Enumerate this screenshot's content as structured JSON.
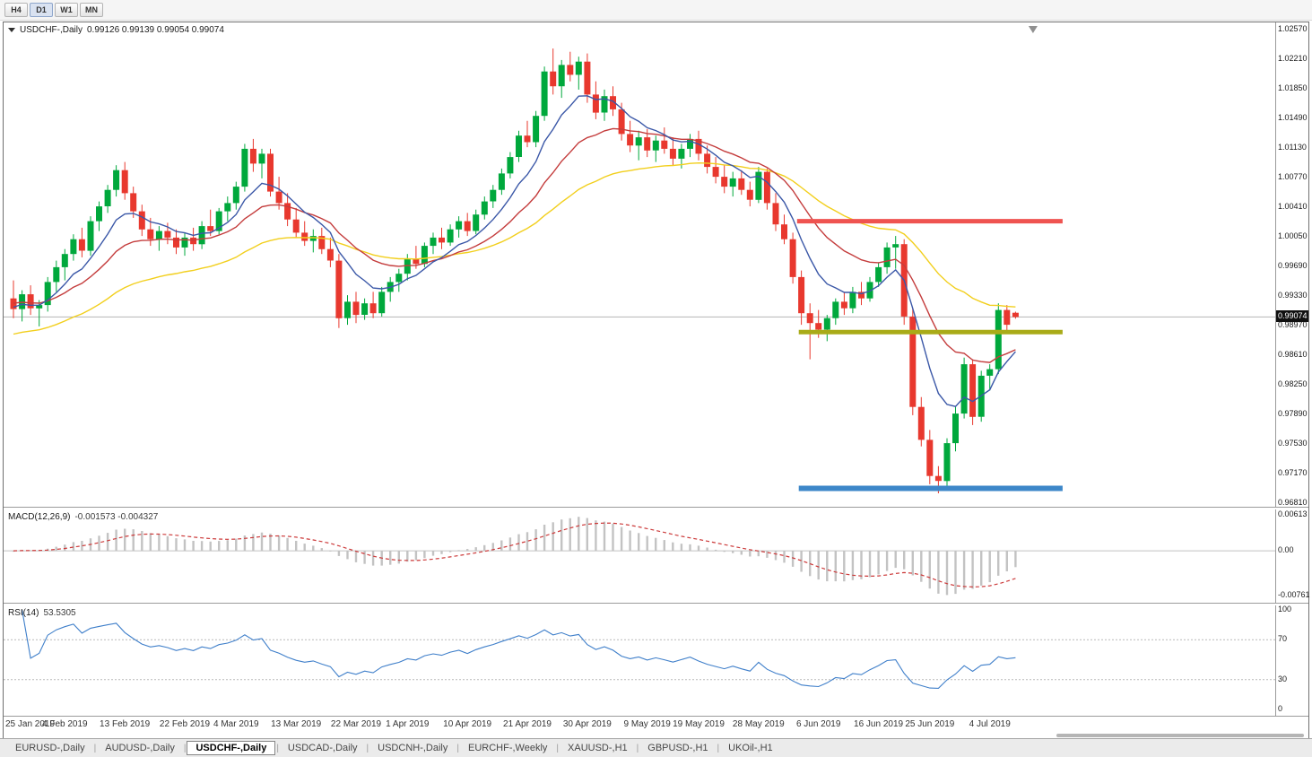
{
  "toolbar": {
    "periods": [
      "H4",
      "D1",
      "W1",
      "MN"
    ],
    "active": "D1"
  },
  "chart": {
    "title": "USDCHF-,Daily",
    "ohlc_text": "0.99126 0.99139 0.99054 0.99074"
  },
  "tabs": {
    "active_index": 2,
    "items": [
      "EURUSD-,Daily",
      "AUDUSD-,Daily",
      "USDCHF-,Daily",
      "USDCAD-,Daily",
      "USDCNH-,Daily",
      "EURCHF-,Weekly",
      "XAUUSD-,H1",
      "GBPUSD-,H1",
      "UKOil-,H1"
    ]
  },
  "chart_data": {
    "type": "candlestick",
    "symbol": "USDCHF-",
    "timeframe": "Daily",
    "current_bar": {
      "open": 0.99126,
      "high": 0.99139,
      "low": 0.99054,
      "close": 0.99074
    },
    "colors": {
      "bull": "#00a83c",
      "bear": "#e8382e",
      "price_line": "#b4b4b4"
    },
    "price_axis": {
      "max": 1.02657,
      "min": 0.96766,
      "badge": {
        "v": 0.99074,
        "t": "0.99074"
      },
      "ticks": [
        {
          "v": 1.0257,
          "t": "1.02570"
        },
        {
          "v": 1.0221,
          "t": "1.02210"
        },
        {
          "v": 1.0185,
          "t": "1.01850"
        },
        {
          "v": 1.0149,
          "t": "1.01490"
        },
        {
          "v": 1.0113,
          "t": "1.01130"
        },
        {
          "v": 1.0077,
          "t": "1.00770"
        },
        {
          "v": 1.0041,
          "t": "1.00410"
        },
        {
          "v": 1.0005,
          "t": "1.00050"
        },
        {
          "v": 0.9969,
          "t": "0.99690"
        },
        {
          "v": 0.9933,
          "t": "0.99330"
        },
        {
          "v": 0.9897,
          "t": "0.98970"
        },
        {
          "v": 0.9861,
          "t": "0.98610"
        },
        {
          "v": 0.9825,
          "t": "0.98250"
        },
        {
          "v": 0.9789,
          "t": "0.97890"
        },
        {
          "v": 0.9753,
          "t": "0.97530"
        },
        {
          "v": 0.9717,
          "t": "0.97170"
        },
        {
          "v": 0.9681,
          "t": "0.96810"
        }
      ]
    },
    "x_labels": [
      {
        "i": 0,
        "t": "25 Jan 2019"
      },
      {
        "i": 6,
        "t": "4 Feb 2019"
      },
      {
        "i": 13,
        "t": "13 Feb 2019"
      },
      {
        "i": 20,
        "t": "22 Feb 2019"
      },
      {
        "i": 26,
        "t": "4 Mar 2019"
      },
      {
        "i": 33,
        "t": "13 Mar 2019"
      },
      {
        "i": 40,
        "t": "22 Mar 2019"
      },
      {
        "i": 46,
        "t": "1 Apr 2019"
      },
      {
        "i": 53,
        "t": "10 Apr 2019"
      },
      {
        "i": 60,
        "t": "21 Apr 2019"
      },
      {
        "i": 67,
        "t": "30 Apr 2019"
      },
      {
        "i": 74,
        "t": "9 May 2019"
      },
      {
        "i": 80,
        "t": "19 May 2019"
      },
      {
        "i": 87,
        "t": "28 May 2019"
      },
      {
        "i": 94,
        "t": "6 Jun 2019"
      },
      {
        "i": 101,
        "t": "16 Jun 2019"
      },
      {
        "i": 107,
        "t": "25 Jun 2019"
      },
      {
        "i": 114,
        "t": "4 Jul 2019"
      }
    ],
    "moving_averages": [
      {
        "period": 40,
        "method": "ema",
        "seed": 0.9885,
        "color": "#f2cf1d",
        "name": "ma-slow-yellow"
      },
      {
        "period": 18,
        "method": "ema",
        "seed": 0.9925,
        "color": "#c43c3c",
        "name": "ma-mid-red"
      },
      {
        "period": 8,
        "method": "ema",
        "seed": 0.992,
        "color": "#3a57a7",
        "name": "ma-fast-blue"
      }
    ],
    "hlines": [
      {
        "price": 1.0024,
        "from": 91.5,
        "to": 122.5,
        "color": "#ef5350",
        "width": 5,
        "name": "resistance-line"
      },
      {
        "price": 0.9889,
        "from": 91.7,
        "to": 122.5,
        "color": "#a9ab18",
        "width": 5,
        "name": "mid-support-line"
      },
      {
        "price": 0.9699,
        "from": 91.7,
        "to": 122.5,
        "color": "#3d87c9",
        "width": 6,
        "name": "support-line"
      }
    ],
    "indicators": {
      "macd": {
        "name": "MACD(12,26,9)",
        "values_text": "-0.001573 -0.004327",
        "fast": 12,
        "slow": 26,
        "signal": 9,
        "vmax": 0.007,
        "vmin": -0.0088,
        "bar_color": "#c3c3c3",
        "signal_color": "#cc3a3a",
        "zero_color": "#c0c0c0",
        "ticks": [
          {
            "v": 0.00613,
            "t": "0.00613"
          },
          {
            "v": 0,
            "t": "0.00"
          },
          {
            "v": -0.00761,
            "t": "-0.00761"
          }
        ]
      },
      "rsi": {
        "name": "RSI(14)",
        "value_text": "53.5305",
        "period": 14,
        "color": "#3f7fca",
        "levels": [
          70,
          30
        ],
        "level_color": "#b9b9b9",
        "ticks": [
          {
            "v": 100,
            "t": "100"
          },
          {
            "v": 70,
            "t": "70"
          },
          {
            "v": 30,
            "t": "30"
          },
          {
            "v": 0,
            "t": "0"
          }
        ]
      }
    },
    "candles": [
      [
        0.993,
        0.9952,
        0.9906,
        0.9917
      ],
      [
        0.9917,
        0.994,
        0.9902,
        0.9935
      ],
      [
        0.9935,
        0.9946,
        0.991,
        0.9918
      ],
      [
        0.9918,
        0.9928,
        0.9896,
        0.9922
      ],
      [
        0.9922,
        0.9956,
        0.9914,
        0.995
      ],
      [
        0.995,
        0.9976,
        0.9938,
        0.9968
      ],
      [
        0.9968,
        0.999,
        0.9952,
        0.9984
      ],
      [
        0.9984,
        1.0008,
        0.9976,
        1.0002
      ],
      [
        1.0002,
        1.0016,
        0.998,
        0.9988
      ],
      [
        0.9988,
        1.003,
        0.9982,
        1.0024
      ],
      [
        1.0024,
        1.0048,
        1.0012,
        1.0042
      ],
      [
        1.0042,
        1.0068,
        1.0034,
        1.0062
      ],
      [
        1.0062,
        1.0092,
        1.0054,
        1.0086
      ],
      [
        1.0086,
        1.0096,
        1.005,
        1.0058
      ],
      [
        1.0058,
        1.0066,
        1.0028,
        1.0036
      ],
      [
        1.0036,
        1.0044,
        1.0006,
        1.0014
      ],
      [
        1.0014,
        1.0028,
        0.9994,
        1.0002
      ],
      [
        1.0002,
        1.0018,
        0.9988,
        1.0012
      ],
      [
        1.0012,
        1.0022,
        0.9996,
        1.0004
      ],
      [
        1.0004,
        1.0014,
        0.9984,
        0.9992
      ],
      [
        0.9992,
        1.001,
        0.9982,
        1.0004
      ],
      [
        1.0004,
        1.0016,
        0.9988,
        0.9996
      ],
      [
        0.9996,
        1.0024,
        0.999,
        1.0018
      ],
      [
        1.0018,
        1.0038,
        1.0006,
        1.0012
      ],
      [
        1.0012,
        1.004,
        1.0008,
        1.0036
      ],
      [
        1.0036,
        1.0054,
        1.0024,
        1.0046
      ],
      [
        1.0046,
        1.0072,
        1.0038,
        1.0066
      ],
      [
        1.0066,
        1.0118,
        1.006,
        1.0112
      ],
      [
        1.0112,
        1.0124,
        1.0084,
        1.0094
      ],
      [
        1.0094,
        1.0112,
        1.0076,
        1.0106
      ],
      [
        1.0106,
        1.0112,
        1.0054,
        1.006
      ],
      [
        1.006,
        1.0078,
        1.0038,
        1.0046
      ],
      [
        1.0046,
        1.0058,
        1.0018,
        1.0026
      ],
      [
        1.0026,
        1.004,
        1.0004,
        1.001
      ],
      [
        1.001,
        1.0024,
        0.9994,
        1.0
      ],
      [
        1.0,
        1.0014,
        0.9986,
        1.0006
      ],
      [
        1.0006,
        1.0016,
        0.9984,
        0.999
      ],
      [
        0.999,
        1.0004,
        0.9968,
        0.9976
      ],
      [
        0.9976,
        0.9984,
        0.9894,
        0.9906
      ],
      [
        0.9906,
        0.9934,
        0.9898,
        0.9926
      ],
      [
        0.9926,
        0.9938,
        0.99,
        0.991
      ],
      [
        0.991,
        0.993,
        0.9904,
        0.9924
      ],
      [
        0.9924,
        0.9938,
        0.9906,
        0.9912
      ],
      [
        0.9912,
        0.9944,
        0.9908,
        0.9938
      ],
      [
        0.9938,
        0.9956,
        0.9926,
        0.995
      ],
      [
        0.995,
        0.9966,
        0.9938,
        0.996
      ],
      [
        0.996,
        0.9984,
        0.9952,
        0.9978
      ],
      [
        0.9978,
        0.9994,
        0.9966,
        0.9972
      ],
      [
        0.9972,
        0.9998,
        0.9968,
        0.9994
      ],
      [
        0.9994,
        1.001,
        0.9984,
        1.0004
      ],
      [
        1.0004,
        1.0016,
        0.999,
        0.9998
      ],
      [
        0.9998,
        1.002,
        0.9994,
        1.0014
      ],
      [
        1.0014,
        1.003,
        1.0004,
        1.0024
      ],
      [
        1.0024,
        1.0034,
        1.0006,
        1.0012
      ],
      [
        1.0012,
        1.0038,
        1.0008,
        1.0032
      ],
      [
        1.0032,
        1.0054,
        1.0026,
        1.0048
      ],
      [
        1.0048,
        1.0068,
        1.004,
        1.0062
      ],
      [
        1.0062,
        1.0088,
        1.0056,
        1.0082
      ],
      [
        1.0082,
        1.0108,
        1.0076,
        1.0102
      ],
      [
        1.0102,
        1.0134,
        1.0096,
        1.0128
      ],
      [
        1.0128,
        1.0146,
        1.0114,
        1.012
      ],
      [
        1.012,
        1.0158,
        1.0114,
        1.0152
      ],
      [
        1.0152,
        1.0212,
        1.0146,
        1.0206
      ],
      [
        1.0206,
        1.0234,
        1.0178,
        1.0188
      ],
      [
        1.0188,
        1.022,
        1.0174,
        1.0214
      ],
      [
        1.0214,
        1.023,
        1.0194,
        1.0202
      ],
      [
        1.0202,
        1.0224,
        1.0184,
        1.0218
      ],
      [
        1.0218,
        1.0228,
        1.0168,
        1.0178
      ],
      [
        1.0178,
        1.0194,
        1.0148,
        1.0156
      ],
      [
        1.0156,
        1.0184,
        1.0146,
        1.0176
      ],
      [
        1.0176,
        1.0188,
        1.0152,
        1.016
      ],
      [
        1.016,
        1.0168,
        1.0122,
        1.013
      ],
      [
        1.013,
        1.0146,
        1.0108,
        1.0116
      ],
      [
        1.0116,
        1.0134,
        1.0098,
        1.0126
      ],
      [
        1.0126,
        1.0136,
        1.0102,
        1.011
      ],
      [
        1.011,
        1.0128,
        1.0096,
        1.0122
      ],
      [
        1.0122,
        1.0138,
        1.0106,
        1.0112
      ],
      [
        1.0112,
        1.0126,
        1.0092,
        1.01
      ],
      [
        1.01,
        1.0118,
        1.0088,
        1.0112
      ],
      [
        1.0112,
        1.013,
        1.0102,
        1.0124
      ],
      [
        1.0124,
        1.0134,
        1.0098,
        1.0106
      ],
      [
        1.0106,
        1.0116,
        1.0082,
        1.009
      ],
      [
        1.009,
        1.0102,
        1.007,
        1.0078
      ],
      [
        1.0078,
        1.0092,
        1.0058,
        1.0066
      ],
      [
        1.0066,
        1.0084,
        1.0054,
        1.0076
      ],
      [
        1.0076,
        1.0086,
        1.0056,
        1.0062
      ],
      [
        1.0062,
        1.0072,
        1.0042,
        1.005
      ],
      [
        1.005,
        1.009,
        1.0046,
        1.0084
      ],
      [
        1.0084,
        1.0088,
        1.0038,
        1.0046
      ],
      [
        1.0046,
        1.0058,
        1.0012,
        1.002
      ],
      [
        1.002,
        1.0032,
        0.9996,
        1.0002
      ],
      [
        1.0002,
        1.001,
        0.9948,
        0.9956
      ],
      [
        0.9956,
        0.9964,
        0.9898,
        0.9912
      ],
      [
        0.9912,
        0.9924,
        0.9856,
        0.99
      ],
      [
        0.99,
        0.9916,
        0.9882,
        0.9892
      ],
      [
        0.9892,
        0.991,
        0.9878,
        0.9906
      ],
      [
        0.9906,
        0.993,
        0.9898,
        0.9926
      ],
      [
        0.9926,
        0.9938,
        0.991,
        0.9918
      ],
      [
        0.9918,
        0.9944,
        0.9912,
        0.9938
      ],
      [
        0.9938,
        0.995,
        0.9922,
        0.993
      ],
      [
        0.993,
        0.9956,
        0.9926,
        0.995
      ],
      [
        0.995,
        0.9974,
        0.9944,
        0.9968
      ],
      [
        0.9968,
        0.9998,
        0.996,
        0.9992
      ],
      [
        0.9992,
        1.0006,
        0.9966,
        0.9996
      ],
      [
        0.9996,
        1.0002,
        0.9898,
        0.9908
      ],
      [
        0.9908,
        0.9918,
        0.9788,
        0.9798
      ],
      [
        0.9798,
        0.981,
        0.975,
        0.9758
      ],
      [
        0.9758,
        0.977,
        0.9704,
        0.9714
      ],
      [
        0.9714,
        0.9726,
        0.9693,
        0.9708
      ],
      [
        0.9708,
        0.976,
        0.9698,
        0.9754
      ],
      [
        0.9754,
        0.9798,
        0.9744,
        0.979
      ],
      [
        0.979,
        0.9858,
        0.9784,
        0.985
      ],
      [
        0.985,
        0.9856,
        0.9776,
        0.9786
      ],
      [
        0.9786,
        0.9842,
        0.978,
        0.9836
      ],
      [
        0.9836,
        0.985,
        0.9818,
        0.9844
      ],
      [
        0.9844,
        0.9924,
        0.9838,
        0.9916
      ],
      [
        0.9916,
        0.9922,
        0.9888,
        0.9898
      ],
      [
        0.99126,
        0.99139,
        0.99054,
        0.99074
      ]
    ]
  }
}
